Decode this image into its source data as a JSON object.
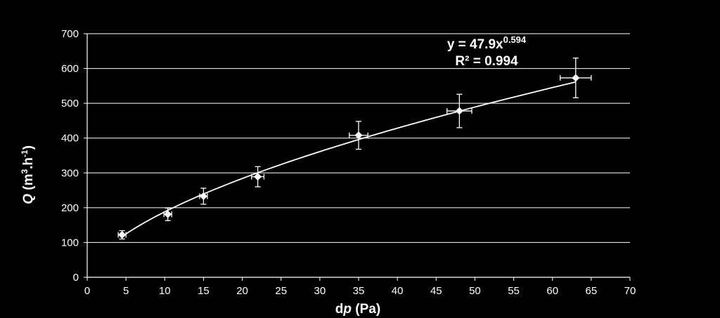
{
  "chart_data": {
    "type": "scatter",
    "background": "#000000",
    "foreground": "#ffffff",
    "xlabel": {
      "main": "d",
      "italic": "p",
      "unit": " (Pa)"
    },
    "ylabel": {
      "main": "Q",
      "unit_prefix": " (m",
      "sup1": "3",
      "mid": ".h",
      "sup2": "-1",
      "close": ")"
    },
    "xlim": [
      0,
      70
    ],
    "ylim": [
      0,
      700
    ],
    "xticks": [
      "0",
      "5",
      "10",
      "15",
      "20",
      "25",
      "30",
      "35",
      "40",
      "45",
      "50",
      "55",
      "60",
      "65",
      "70"
    ],
    "yticks": [
      "0",
      "100",
      "200",
      "300",
      "400",
      "500",
      "600",
      "700"
    ],
    "grid": "horizontal",
    "marker": "diamond",
    "points": [
      {
        "x": 4.5,
        "y": 122,
        "xerr": 0.5,
        "yerr": 12
      },
      {
        "x": 10.4,
        "y": 181,
        "xerr": 0.5,
        "yerr": 18
      },
      {
        "x": 15.0,
        "y": 233,
        "xerr": 0.5,
        "yerr": 23
      },
      {
        "x": 22.0,
        "y": 289,
        "xerr": 0.8,
        "yerr": 29
      },
      {
        "x": 35.0,
        "y": 408,
        "xerr": 1.2,
        "yerr": 40
      },
      {
        "x": 48.0,
        "y": 478,
        "xerr": 1.6,
        "yerr": 48
      },
      {
        "x": 63.0,
        "y": 573,
        "xerr": 2.0,
        "yerr": 57
      }
    ],
    "fit": {
      "type": "power",
      "a": 47.9,
      "b": 0.594,
      "x_range": [
        4.5,
        63
      ],
      "equation": {
        "prefix": "y = 47.9x",
        "exponent": "0.594"
      },
      "r2": "R² = 0.994"
    }
  }
}
